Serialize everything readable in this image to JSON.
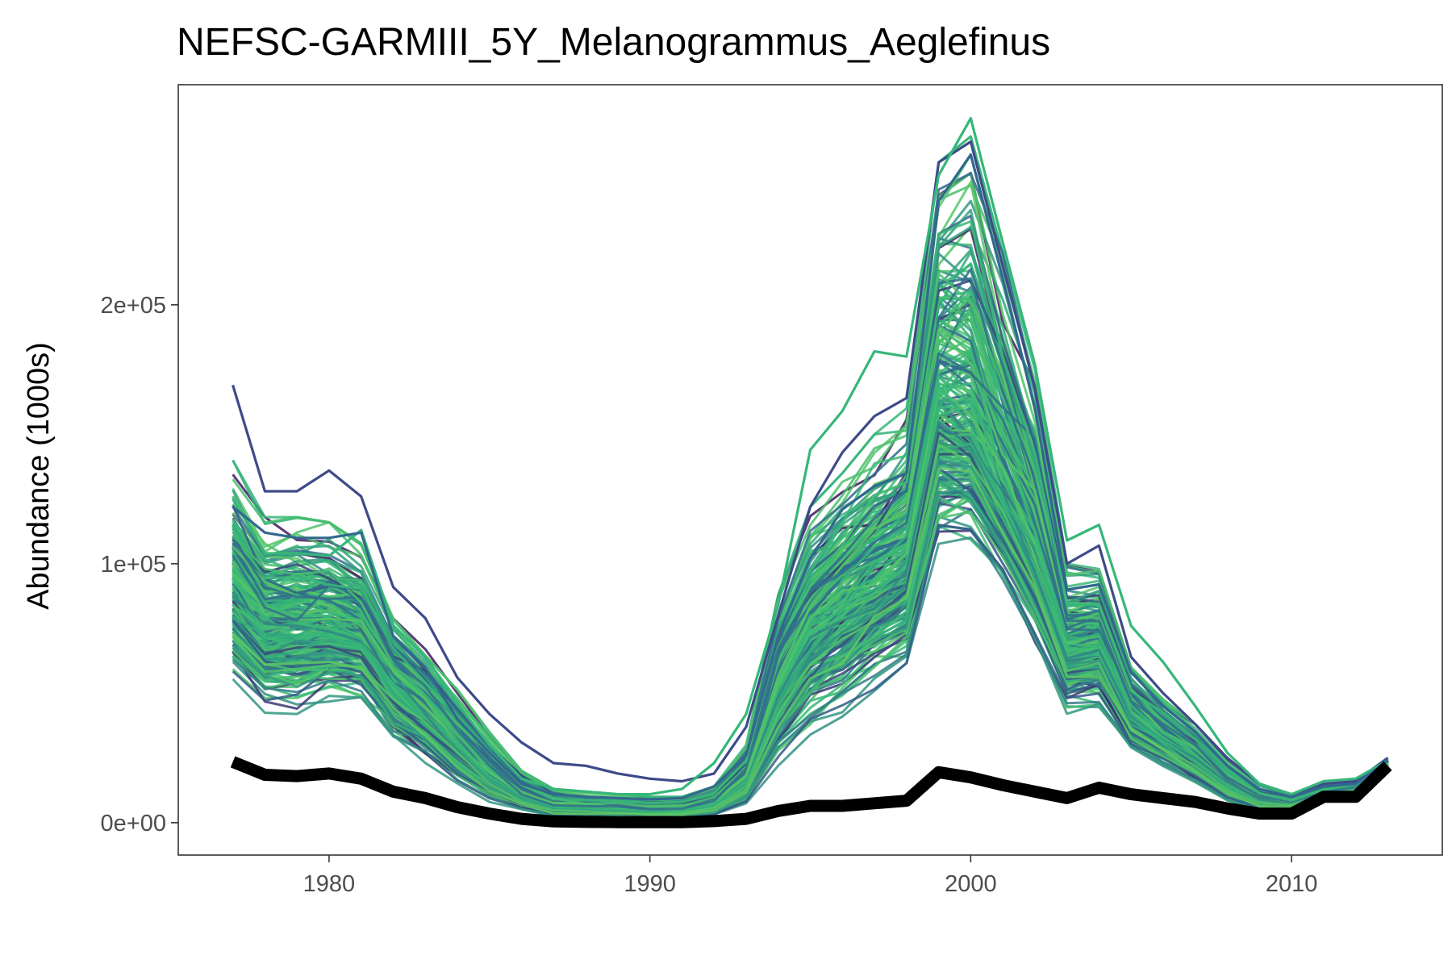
{
  "chart_data": {
    "type": "line",
    "title": "NEFSC-GARMIII_5Y_Melanogrammus_Aeglefinus",
    "xlabel": "",
    "ylabel": "Abundance (1000s)",
    "xlim": [
      1975.3,
      2014.7
    ],
    "ylim": [
      -12500,
      285000
    ],
    "x_ticks": [
      1980,
      1990,
      2000,
      2010
    ],
    "x_tick_labels": [
      "1980",
      "1990",
      "2000",
      "2010"
    ],
    "y_ticks": [
      0,
      100000,
      200000
    ],
    "y_tick_labels": [
      "0e+00",
      "1e+05",
      "2e+05"
    ],
    "grid": false,
    "legend": "none",
    "colors": {
      "ensemble_start": "#440154",
      "ensemble_mid": "#31688e",
      "ensemble_end": "#35b779",
      "ensemble_bright": "#5ec962",
      "reference_line": "#000000",
      "panel_border": "#333333"
    },
    "x": [
      1977,
      1978,
      1979,
      1980,
      1981,
      1982,
      1983,
      1984,
      1985,
      1986,
      1987,
      1988,
      1989,
      1990,
      1991,
      1992,
      1993,
      1994,
      1995,
      1996,
      1997,
      1998,
      1999,
      2000,
      2001,
      2002,
      2003,
      2004,
      2005,
      2006,
      2007,
      2008,
      2009,
      2010,
      2011,
      2012,
      2013
    ],
    "ensemble": {
      "count": 220,
      "median": [
        88000,
        73000,
        73000,
        74000,
        72000,
        54000,
        43000,
        30000,
        18000,
        10000,
        5500,
        5000,
        4500,
        4000,
        4200,
        6500,
        15000,
        50000,
        72000,
        82000,
        90000,
        98000,
        155000,
        150000,
        125000,
        100000,
        65000,
        68000,
        42000,
        32000,
        24000,
        14000,
        8000,
        7000,
        11000,
        13000,
        23000
      ],
      "low": [
        52000,
        42000,
        42000,
        46000,
        44000,
        29000,
        22000,
        14000,
        8000,
        4500,
        2000,
        2000,
        1800,
        1600,
        1700,
        2500,
        7500,
        22000,
        34000,
        41000,
        50000,
        55000,
        103000,
        105000,
        90000,
        68000,
        42000,
        42000,
        26000,
        21000,
        15000,
        8000,
        5000,
        4500,
        8000,
        9500,
        21000
      ],
      "high": [
        140000,
        118000,
        118000,
        116000,
        108000,
        80000,
        67000,
        52000,
        35000,
        20000,
        13000,
        12000,
        11000,
        10000,
        10000,
        14000,
        30000,
        88000,
        122000,
        135000,
        150000,
        160000,
        255000,
        265000,
        220000,
        175000,
        100000,
        98000,
        60000,
        48000,
        38000,
        25000,
        15000,
        11000,
        15000,
        16000,
        25000
      ],
      "outliers": [
        [
          169000,
          128000,
          128000,
          136000,
          126000,
          91000,
          79000,
          56000,
          42000,
          31000,
          23000,
          22000,
          19000,
          17000,
          16000,
          19000,
          37000,
          80000,
          122000,
          143000,
          157000,
          164000,
          255000,
          263000,
          215000,
          168000,
          100000,
          107000,
          64000,
          50000,
          38000,
          25000,
          15000,
          11000,
          15000,
          16000,
          25000
        ],
        [
          125000,
          104000,
          104000,
          103000,
          113000,
          76000,
          64000,
          46000,
          30000,
          17000,
          13000,
          12000,
          11000,
          11000,
          13000,
          23000,
          42000,
          84000,
          144000,
          159000,
          182000,
          180000,
          250000,
          272000,
          224000,
          177000,
          109000,
          115000,
          76000,
          62000,
          45000,
          27000,
          15000,
          11000,
          16000,
          17000,
          24000
        ],
        [
          122000,
          112000,
          110000,
          110000,
          112000,
          72000,
          60000,
          40000,
          27000,
          15000,
          11000,
          10000,
          9500,
          9000,
          9500,
          14000,
          26000,
          72000,
          102000,
          121000,
          130000,
          135000,
          240000,
          258000,
          210000,
          160000,
          90000,
          92000,
          58000,
          45000,
          35000,
          22000,
          13000,
          10000,
          14000,
          15000,
          24000
        ]
      ]
    },
    "series": [
      {
        "values": [
          23500,
          18500,
          18000,
          19000,
          17000,
          12000,
          9500,
          6000,
          3500,
          1500,
          500,
          300,
          200,
          200,
          200,
          600,
          1500,
          4500,
          6500,
          6500,
          7500,
          8500,
          19500,
          17500,
          14500,
          12000,
          9500,
          13500,
          11000,
          9500,
          8000,
          5500,
          3500,
          3500,
          10000,
          10000,
          22000
        ]
      }
    ]
  }
}
